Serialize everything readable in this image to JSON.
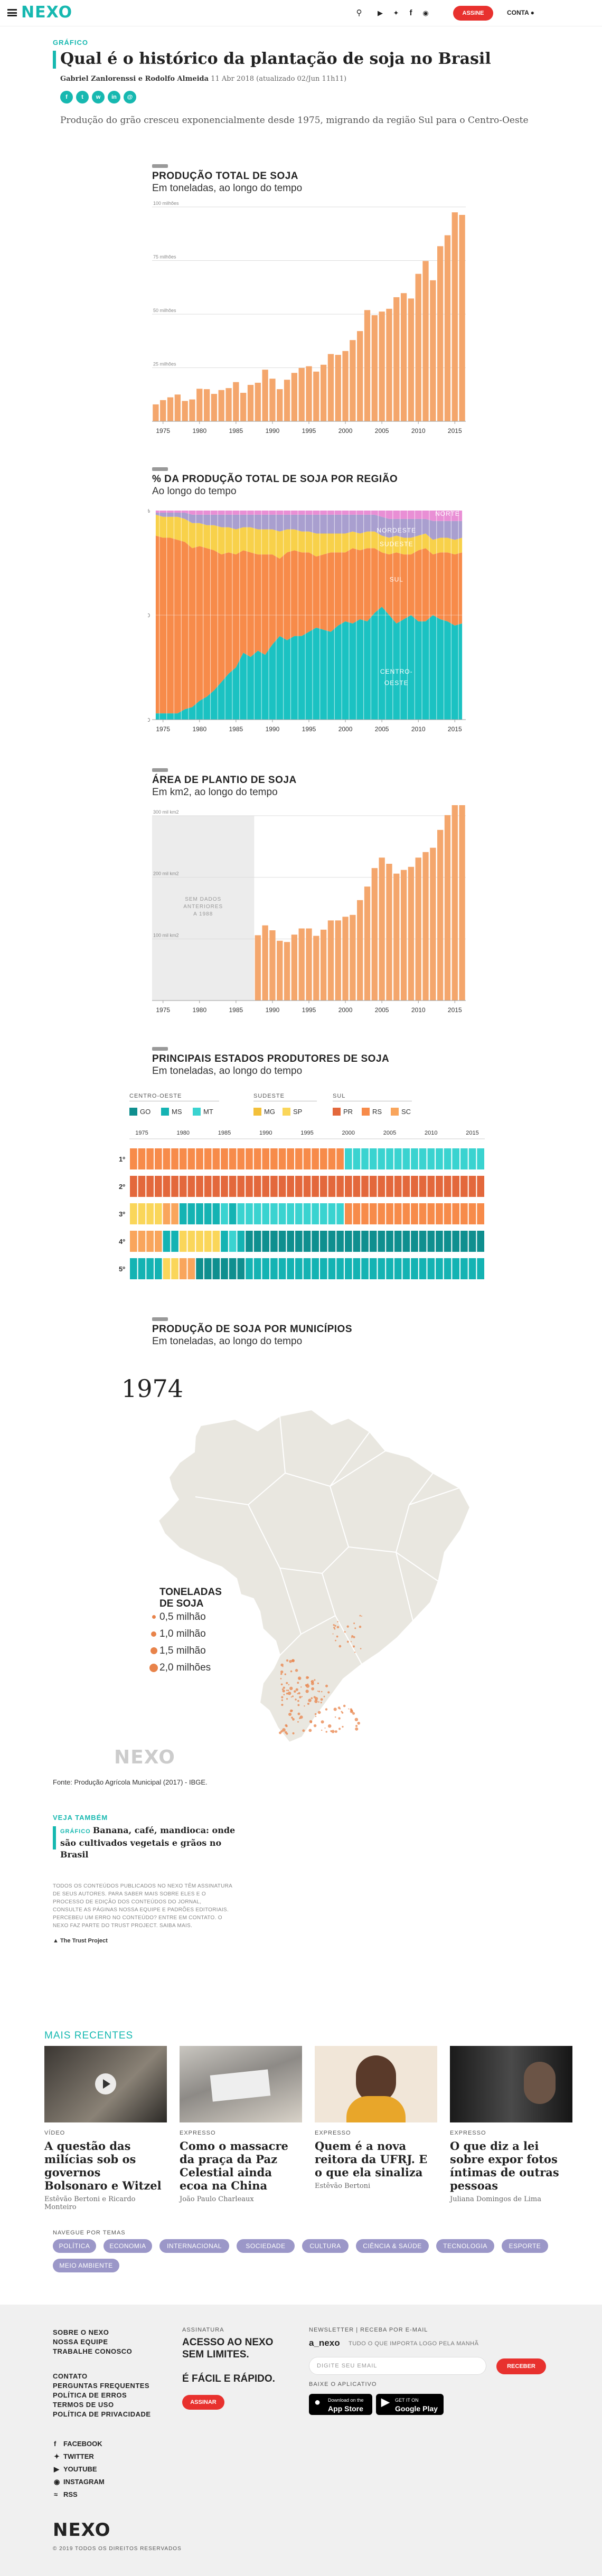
{
  "header": {
    "logo": "NEXO",
    "subscribe": "ASSINE",
    "account": "CONTA",
    "icons": [
      "search-icon",
      "youtube-icon",
      "twitter-icon",
      "facebook-icon",
      "instagram-icon"
    ]
  },
  "article": {
    "kicker": "GRÁFICO",
    "title": "Qual é o histórico da plantação de soja no Brasil",
    "authors": "Gabriel Zanlorenssi e Rodolfo Almeida",
    "date": "11 Abr 2018",
    "updated": "(atualizado 02/Jun 11h11)",
    "lead": "Produção do grão cresceu exponencialmente desde 1975, migrando da região Sul para o Centro-Oeste",
    "share": [
      "facebook-icon",
      "twitter-icon",
      "whatsapp-icon",
      "linkedin-icon",
      "email-icon"
    ]
  },
  "colors": {
    "accent": "#16b8b0",
    "bar": "#f4a66c",
    "sul": "#f78b4a",
    "centro_oeste": "#1bc2c2",
    "sudeste": "#f8d14a",
    "nordeste": "#a99fcf",
    "norte": "#e98fd5",
    "pr": "#e3683c",
    "rs": "#f78b4a",
    "sc": "#f9a55c",
    "go": "#0f8f8f",
    "ms": "#14b3b3",
    "mt": "#3ad3d0",
    "mg": "#f3c03a",
    "sp": "#fad65a"
  },
  "chart_data": [
    {
      "type": "bar",
      "title": "PRODUÇÃO TOTAL DE SOJA",
      "subtitle": "Em toneladas, ao longo do tempo",
      "ylim": [
        0,
        100
      ],
      "yticks": [
        {
          "v": 0,
          "l": "0"
        },
        {
          "v": 25,
          "l": "25 milhões"
        },
        {
          "v": 50,
          "l": "50 milhões"
        },
        {
          "v": 75,
          "l": "75 milhões"
        },
        {
          "v": 100,
          "l": "100 milhões"
        }
      ],
      "xticks": [
        1975,
        1980,
        1985,
        1990,
        1995,
        2000,
        2005,
        2010,
        2015
      ],
      "x": [
        1974,
        1975,
        1976,
        1977,
        1978,
        1979,
        1980,
        1981,
        1982,
        1983,
        1984,
        1985,
        1986,
        1987,
        1988,
        1989,
        1990,
        1991,
        1992,
        1993,
        1994,
        1995,
        1996,
        1997,
        1998,
        1999,
        2000,
        2001,
        2002,
        2003,
        2004,
        2005,
        2006,
        2007,
        2008,
        2009,
        2010,
        2011,
        2012,
        2013,
        2014,
        2015,
        2016
      ],
      "values": [
        7.9,
        9.9,
        11.2,
        12.5,
        9.5,
        10.2,
        15.2,
        15.0,
        12.8,
        14.6,
        15.5,
        18.3,
        13.3,
        17.0,
        18.0,
        24.1,
        19.9,
        15.0,
        19.4,
        22.6,
        24.9,
        25.7,
        23.2,
        26.4,
        31.4,
        31.0,
        32.8,
        37.9,
        42.1,
        51.9,
        49.5,
        51.2,
        52.5,
        57.9,
        59.8,
        57.3,
        68.8,
        74.8,
        65.8,
        81.7,
        86.8,
        97.5,
        96.3
      ]
    },
    {
      "type": "area",
      "stacked_percent": true,
      "title": "% DA PRODUÇÃO TOTAL DE SOJA POR REGIÃO",
      "subtitle": "Ao longo do tempo",
      "yticks": [
        {
          "v": 0,
          "l": "0"
        },
        {
          "v": 50,
          "l": "50"
        },
        {
          "v": 100,
          "l": "100%"
        }
      ],
      "xticks": [
        1975,
        1980,
        1985,
        1990,
        1995,
        2000,
        2005,
        2010,
        2015
      ],
      "x": [
        1974,
        1975,
        1976,
        1977,
        1978,
        1979,
        1980,
        1981,
        1982,
        1983,
        1984,
        1985,
        1986,
        1987,
        1988,
        1989,
        1990,
        1991,
        1992,
        1993,
        1994,
        1995,
        1996,
        1997,
        1998,
        1999,
        2000,
        2001,
        2002,
        2003,
        2004,
        2005,
        2006,
        2007,
        2008,
        2009,
        2010,
        2011,
        2012,
        2013,
        2014,
        2015,
        2016
      ],
      "series": [
        {
          "name": "CENTRO-OESTE",
          "values": [
            3,
            3,
            3,
            3,
            5,
            6,
            9,
            11,
            14,
            18,
            22,
            25,
            32,
            30,
            33,
            31,
            36,
            40,
            38,
            40,
            40,
            42,
            44,
            43,
            42,
            45,
            47,
            46,
            48,
            47,
            51,
            54,
            50,
            46,
            48,
            50,
            47,
            47,
            50,
            48,
            47,
            45,
            46
          ]
        },
        {
          "name": "SUL",
          "values": [
            85,
            84,
            84,
            83,
            80,
            76,
            74,
            71,
            67,
            61,
            58,
            54,
            49,
            50,
            46,
            48,
            43,
            37,
            42,
            41,
            40,
            38,
            34,
            36,
            38,
            35,
            33,
            36,
            33,
            35,
            31,
            26,
            29,
            34,
            31,
            29,
            34,
            35,
            29,
            32,
            33,
            34,
            34
          ]
        },
        {
          "name": "SUDESTE",
          "values": [
            10,
            10,
            10,
            11,
            11,
            12,
            11,
            11,
            12,
            13,
            12,
            12,
            11,
            12,
            12,
            12,
            12,
            13,
            11,
            10,
            10,
            10,
            11,
            10,
            9,
            9,
            9,
            8,
            8,
            8,
            8,
            8,
            8,
            8,
            8,
            8,
            7,
            7,
            7,
            7,
            7,
            7,
            7
          ]
        },
        {
          "name": "NORDESTE",
          "values": [
            1,
            2,
            2,
            2,
            3,
            4,
            4,
            5,
            5,
            6,
            6,
            7,
            6,
            6,
            7,
            7,
            7,
            8,
            7,
            7,
            8,
            8,
            9,
            9,
            9,
            9,
            9,
            8,
            9,
            8,
            8,
            9,
            9,
            8,
            9,
            9,
            8,
            7,
            9,
            8,
            8,
            9,
            8
          ]
        },
        {
          "name": "NORTE",
          "values": [
            1,
            1,
            1,
            1,
            1,
            2,
            2,
            2,
            2,
            2,
            2,
            2,
            2,
            2,
            2,
            2,
            2,
            2,
            2,
            2,
            2,
            2,
            2,
            2,
            2,
            2,
            2,
            2,
            2,
            2,
            2,
            3,
            4,
            4,
            4,
            4,
            4,
            4,
            5,
            5,
            5,
            5,
            5
          ]
        }
      ],
      "labels": [
        {
          "t": "NORTE",
          "x": 2014,
          "y": 97.5
        },
        {
          "t": "NORDESTE",
          "x": 2007,
          "y": 89.5
        },
        {
          "t": "SUDESTE",
          "x": 2007,
          "y": 83
        },
        {
          "t": "SUL",
          "x": 2007,
          "y": 66
        },
        {
          "t": "CENTRO-",
          "x": 2007,
          "y": 22
        },
        {
          "t": "OESTE",
          "x": 2007,
          "y": 16.5
        }
      ]
    },
    {
      "type": "bar",
      "title": "ÁREA DE PLANTIO DE SOJA",
      "subtitle": "Em km2, ao longo do tempo",
      "ylim": [
        0,
        300000
      ],
      "yticks": [
        {
          "v": 0,
          "l": "0"
        },
        {
          "v": 100000,
          "l": "100 mil km2"
        },
        {
          "v": 200000,
          "l": "200 mil km2"
        },
        {
          "v": 300000,
          "l": "300 mil km2"
        }
      ],
      "xticks": [
        1975,
        1980,
        1985,
        1990,
        1995,
        2000,
        2005,
        2010,
        2015
      ],
      "nodata": {
        "from": 1974,
        "to": 1987,
        "lines": [
          "SEM DADOS",
          "ANTERIORES",
          "A 1988"
        ]
      },
      "x": [
        1988,
        1989,
        1990,
        1991,
        1992,
        1993,
        1994,
        1995,
        1996,
        1997,
        1998,
        1999,
        2000,
        2001,
        2002,
        2003,
        2004,
        2005,
        2006,
        2007,
        2008,
        2009,
        2010,
        2011,
        2012,
        2013,
        2014,
        2015,
        2016
      ],
      "values": [
        106000,
        122000,
        114000,
        97000,
        95000,
        107000,
        117000,
        117000,
        105000,
        115000,
        130000,
        130000,
        136000,
        139000,
        163000,
        185000,
        215000,
        232000,
        222000,
        206000,
        212000,
        217000,
        232000,
        241000,
        248000,
        277000,
        301000,
        320000,
        333000
      ]
    },
    {
      "type": "table",
      "title": "PRINCIPAIS ESTADOS PRODUTORES DE SOJA",
      "subtitle": "Em toneladas, ao longo do tempo",
      "groups": [
        {
          "name": "CENTRO-OESTE",
          "items": [
            "GO",
            "MS",
            "MT"
          ]
        },
        {
          "name": "SUDESTE",
          "items": [
            "MG",
            "SP"
          ]
        },
        {
          "name": "SUL",
          "items": [
            "PR",
            "RS",
            "SC"
          ]
        }
      ],
      "xticks": [
        1975,
        1980,
        1985,
        1990,
        1995,
        2000,
        2005,
        2010,
        2015
      ],
      "ranks": [
        "1º",
        "2º",
        "3º",
        "4º",
        "5º"
      ],
      "x": [
        1974,
        1975,
        1976,
        1977,
        1978,
        1979,
        1980,
        1981,
        1982,
        1983,
        1984,
        1985,
        1986,
        1987,
        1988,
        1989,
        1990,
        1991,
        1992,
        1993,
        1994,
        1995,
        1996,
        1997,
        1998,
        1999,
        2000,
        2001,
        2002,
        2003,
        2004,
        2005,
        2006,
        2007,
        2008,
        2009,
        2010,
        2011,
        2012,
        2013,
        2014,
        2015,
        2016
      ],
      "rows": [
        [
          "RS",
          "RS",
          "RS",
          "RS",
          "RS",
          "RS",
          "RS",
          "RS",
          "RS",
          "RS",
          "RS",
          "RS",
          "RS",
          "RS",
          "RS",
          "RS",
          "RS",
          "RS",
          "RS",
          "RS",
          "RS",
          "RS",
          "RS",
          "RS",
          "RS",
          "RS",
          "MT",
          "MT",
          "MT",
          "MT",
          "MT",
          "MT",
          "MT",
          "MT",
          "MT",
          "MT",
          "MT",
          "MT",
          "MT",
          "MT",
          "MT",
          "MT",
          "MT"
        ],
        [
          "PR",
          "PR",
          "PR",
          "PR",
          "PR",
          "PR",
          "PR",
          "PR",
          "PR",
          "PR",
          "PR",
          "PR",
          "PR",
          "PR",
          "PR",
          "PR",
          "PR",
          "PR",
          "PR",
          "PR",
          "PR",
          "PR",
          "PR",
          "PR",
          "PR",
          "PR",
          "PR",
          "PR",
          "PR",
          "PR",
          "PR",
          "PR",
          "PR",
          "PR",
          "PR",
          "PR",
          "PR",
          "PR",
          "PR",
          "PR",
          "PR",
          "PR",
          "PR"
        ],
        [
          "SP",
          "SP",
          "SP",
          "SP",
          "SC",
          "SC",
          "MS",
          "MS",
          "MS",
          "MS",
          "MS",
          "MT",
          "MS",
          "MT",
          "MT",
          "MT",
          "MT",
          "MT",
          "MT",
          "MT",
          "MT",
          "MT",
          "MT",
          "MT",
          "MT",
          "MT",
          "RS",
          "RS",
          "RS",
          "RS",
          "RS",
          "RS",
          "RS",
          "RS",
          "RS",
          "RS",
          "RS",
          "RS",
          "RS",
          "RS",
          "RS",
          "RS",
          "RS"
        ],
        [
          "SC",
          "SC",
          "SC",
          "SC",
          "MS",
          "MS",
          "SP",
          "SP",
          "SP",
          "SP",
          "SP",
          "MS",
          "MT",
          "MS",
          "GO",
          "GO",
          "GO",
          "GO",
          "GO",
          "GO",
          "GO",
          "GO",
          "GO",
          "GO",
          "GO",
          "GO",
          "GO",
          "GO",
          "GO",
          "GO",
          "GO",
          "GO",
          "GO",
          "GO",
          "GO",
          "GO",
          "GO",
          "GO",
          "GO",
          "GO",
          "GO",
          "GO",
          "GO"
        ],
        [
          "MS",
          "MS",
          "MS",
          "MS",
          "SP",
          "SP",
          "SC",
          "SC",
          "GO",
          "GO",
          "GO",
          "GO",
          "GO",
          "GO",
          "MS",
          "MS",
          "MS",
          "MS",
          "MS",
          "MS",
          "MS",
          "MS",
          "MS",
          "MS",
          "MS",
          "MS",
          "MS",
          "MS",
          "MS",
          "MS",
          "MS",
          "MS",
          "MS",
          "MS",
          "MS",
          "MS",
          "MS",
          "MS",
          "MS",
          "MS",
          "MS",
          "MS",
          "MS"
        ]
      ]
    }
  ],
  "map": {
    "title": "PRODUÇÃO DE SOJA POR MUNICÍPIOS",
    "subtitle": "Em toneladas, ao longo do tempo",
    "year": "1974",
    "legend_title_1": "TONELADAS",
    "legend_title_2": "DE SOJA",
    "legend": [
      "0,5 milhão",
      "1,0 milhão",
      "1,5 milhão",
      "2,0 milhões"
    ],
    "watermark": "NEXO",
    "source": "Fonte: Produção Agrícola Municipal (2017) - IBGE."
  },
  "see_also": {
    "label": "VEJA TAMBÉM",
    "kicker": "GRÁFICO",
    "title": "Banana, café, mandioca: onde são cultivados vegetais e grãos no Brasil"
  },
  "disclaimer": "TODOS OS CONTEÚDOS PUBLICADOS NO NEXO TÊM ASSINATURA DE SEUS AUTORES. PARA SABER MAIS SOBRE ELES E O PROCESSO DE EDIÇÃO DOS CONTEÚDOS DO JORNAL, CONSULTE AS PÁGINAS NOSSA EQUIPE E PADRÕES EDITORIAIS. PERCEBEU UM ERRO NO CONTEÚDO? ENTRE EM CONTATO. O NEXO FAZ PARTE DO TRUST PROJECT. SAIBA MAIS.",
  "trust": "The Trust Project",
  "recent": {
    "label": "MAIS RECENTES",
    "cards": [
      {
        "section": "VÍDEO",
        "headline": "A questão das milícias sob os governos Bolsonaro e Witzel",
        "author": "Estêvão Bertoni e Ricardo Monteiro"
      },
      {
        "section": "EXPRESSO",
        "headline": "Como o massacre da praça da Paz Celestial ainda ecoa na China",
        "author": "João Paulo Charleaux"
      },
      {
        "section": "EXPRESSO",
        "headline": "Quem é a nova reitora da UFRJ. E o que ela sinaliza",
        "author": "Estêvão Bertoni"
      },
      {
        "section": "EXPRESSO",
        "headline": "O que diz a lei sobre expor fotos íntimas de outras pessoas",
        "author": "Juliana Domingos de Lima"
      }
    ]
  },
  "topics": {
    "label": "NAVEGUE POR TEMAS",
    "items": [
      "POLÍTICA",
      "ECONOMIA",
      "INTERNACIONAL",
      "SOCIEDADE",
      "CULTURA",
      "CIÊNCIA & SAÚDE",
      "TECNOLOGIA",
      "ESPORTE",
      "MEIO AMBIENTE"
    ]
  },
  "footer": {
    "links1": [
      "SOBRE O NEXO",
      "NOSSA EQUIPE",
      "TRABALHE CONOSCO"
    ],
    "links2": [
      "CONTATO",
      "PERGUNTAS FREQUENTES",
      "POLÍTICA DE ERROS",
      "TERMOS DE USO",
      "POLÍTICA DE PRIVACIDADE"
    ],
    "social": [
      "FACEBOOK",
      "TWITTER",
      "YOUTUBE",
      "INSTAGRAM",
      "RSS"
    ],
    "sub_label": "ASSINATURA",
    "sub_text": "ACESSO AO NEXO SEM LIMITES.",
    "sub_text2": "É FÁCIL E RÁPIDO.",
    "sub_button": "ASSINAR",
    "news_label": "NEWSLETTER | RECEBA POR E-MAIL",
    "news_brand": "a_nexo",
    "news_desc": "TUDO O QUE IMPORTA LOGO PELA MANHÃ",
    "news_placeholder": "DIGITE SEU EMAIL",
    "news_button": "RECEBER",
    "app_label": "BAIXE O APLICATIVO",
    "appstore_small": "Download on the",
    "appstore": "App Store",
    "play_small": "GET IT ON",
    "play": "Google Play",
    "logo": "NEXO",
    "copyright": "© 2019 TODOS OS DIREITOS RESERVADOS"
  }
}
